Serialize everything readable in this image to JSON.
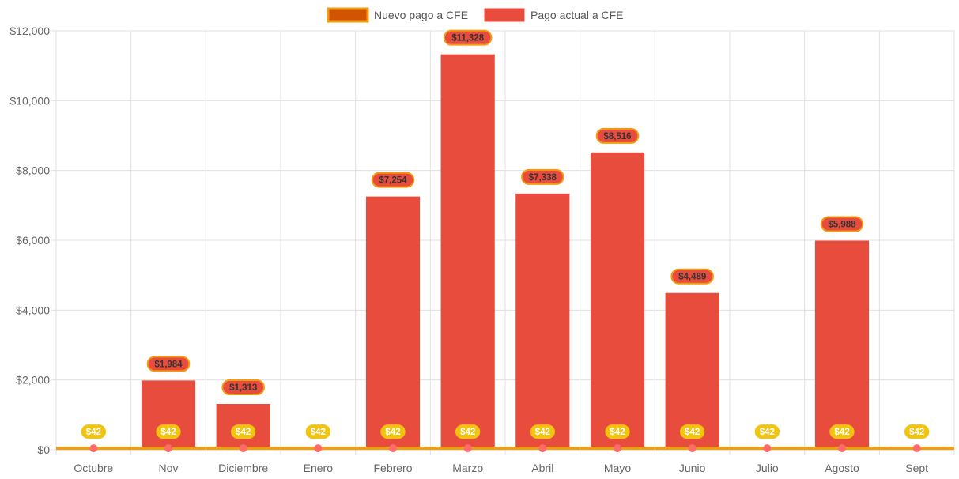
{
  "chart_data": {
    "type": "bar",
    "categories": [
      "Octubre",
      "Nov",
      "Diciembre",
      "Enero",
      "Febrero",
      "Marzo",
      "Abril",
      "Mayo",
      "Junio",
      "Julio",
      "Agosto",
      "Sept"
    ],
    "ylim": [
      0,
      12000
    ],
    "yticks": [
      0,
      2000,
      4000,
      6000,
      8000,
      10000,
      12000
    ],
    "ytick_labels": [
      "$0",
      "$2,000",
      "$4,000",
      "$6,000",
      "$8,000",
      "$10,000",
      "$12,000"
    ],
    "grid": true,
    "legend_position": "top-center",
    "series": [
      {
        "name": "Nuevo pago a CFE",
        "kind": "line",
        "values": [
          42,
          42,
          42,
          42,
          42,
          42,
          42,
          42,
          42,
          42,
          42,
          42
        ],
        "labels": [
          "$42",
          "$42",
          "$42",
          "$42",
          "$42",
          "$42",
          "$42",
          "$42",
          "$42",
          "$42",
          "$42",
          "$42"
        ],
        "color": "#f39c12",
        "legend_fill": "#d35400",
        "point_color": "#ff6b6b",
        "label_bg": "#f1c40f"
      },
      {
        "name": "Pago actual a CFE",
        "kind": "bar",
        "values": [
          60,
          1984,
          1313,
          0,
          7254,
          11328,
          7338,
          8516,
          4489,
          80,
          5988,
          90
        ],
        "labels": [
          "",
          "$1,984",
          "$1,313",
          "",
          "$7,254",
          "$11,328",
          "$7,338",
          "$8,516",
          "$4,489",
          "",
          "$5,988",
          ""
        ],
        "color": "#e74c3c",
        "label_bg": "#e74c3c",
        "label_border": "#f39c12"
      }
    ]
  }
}
